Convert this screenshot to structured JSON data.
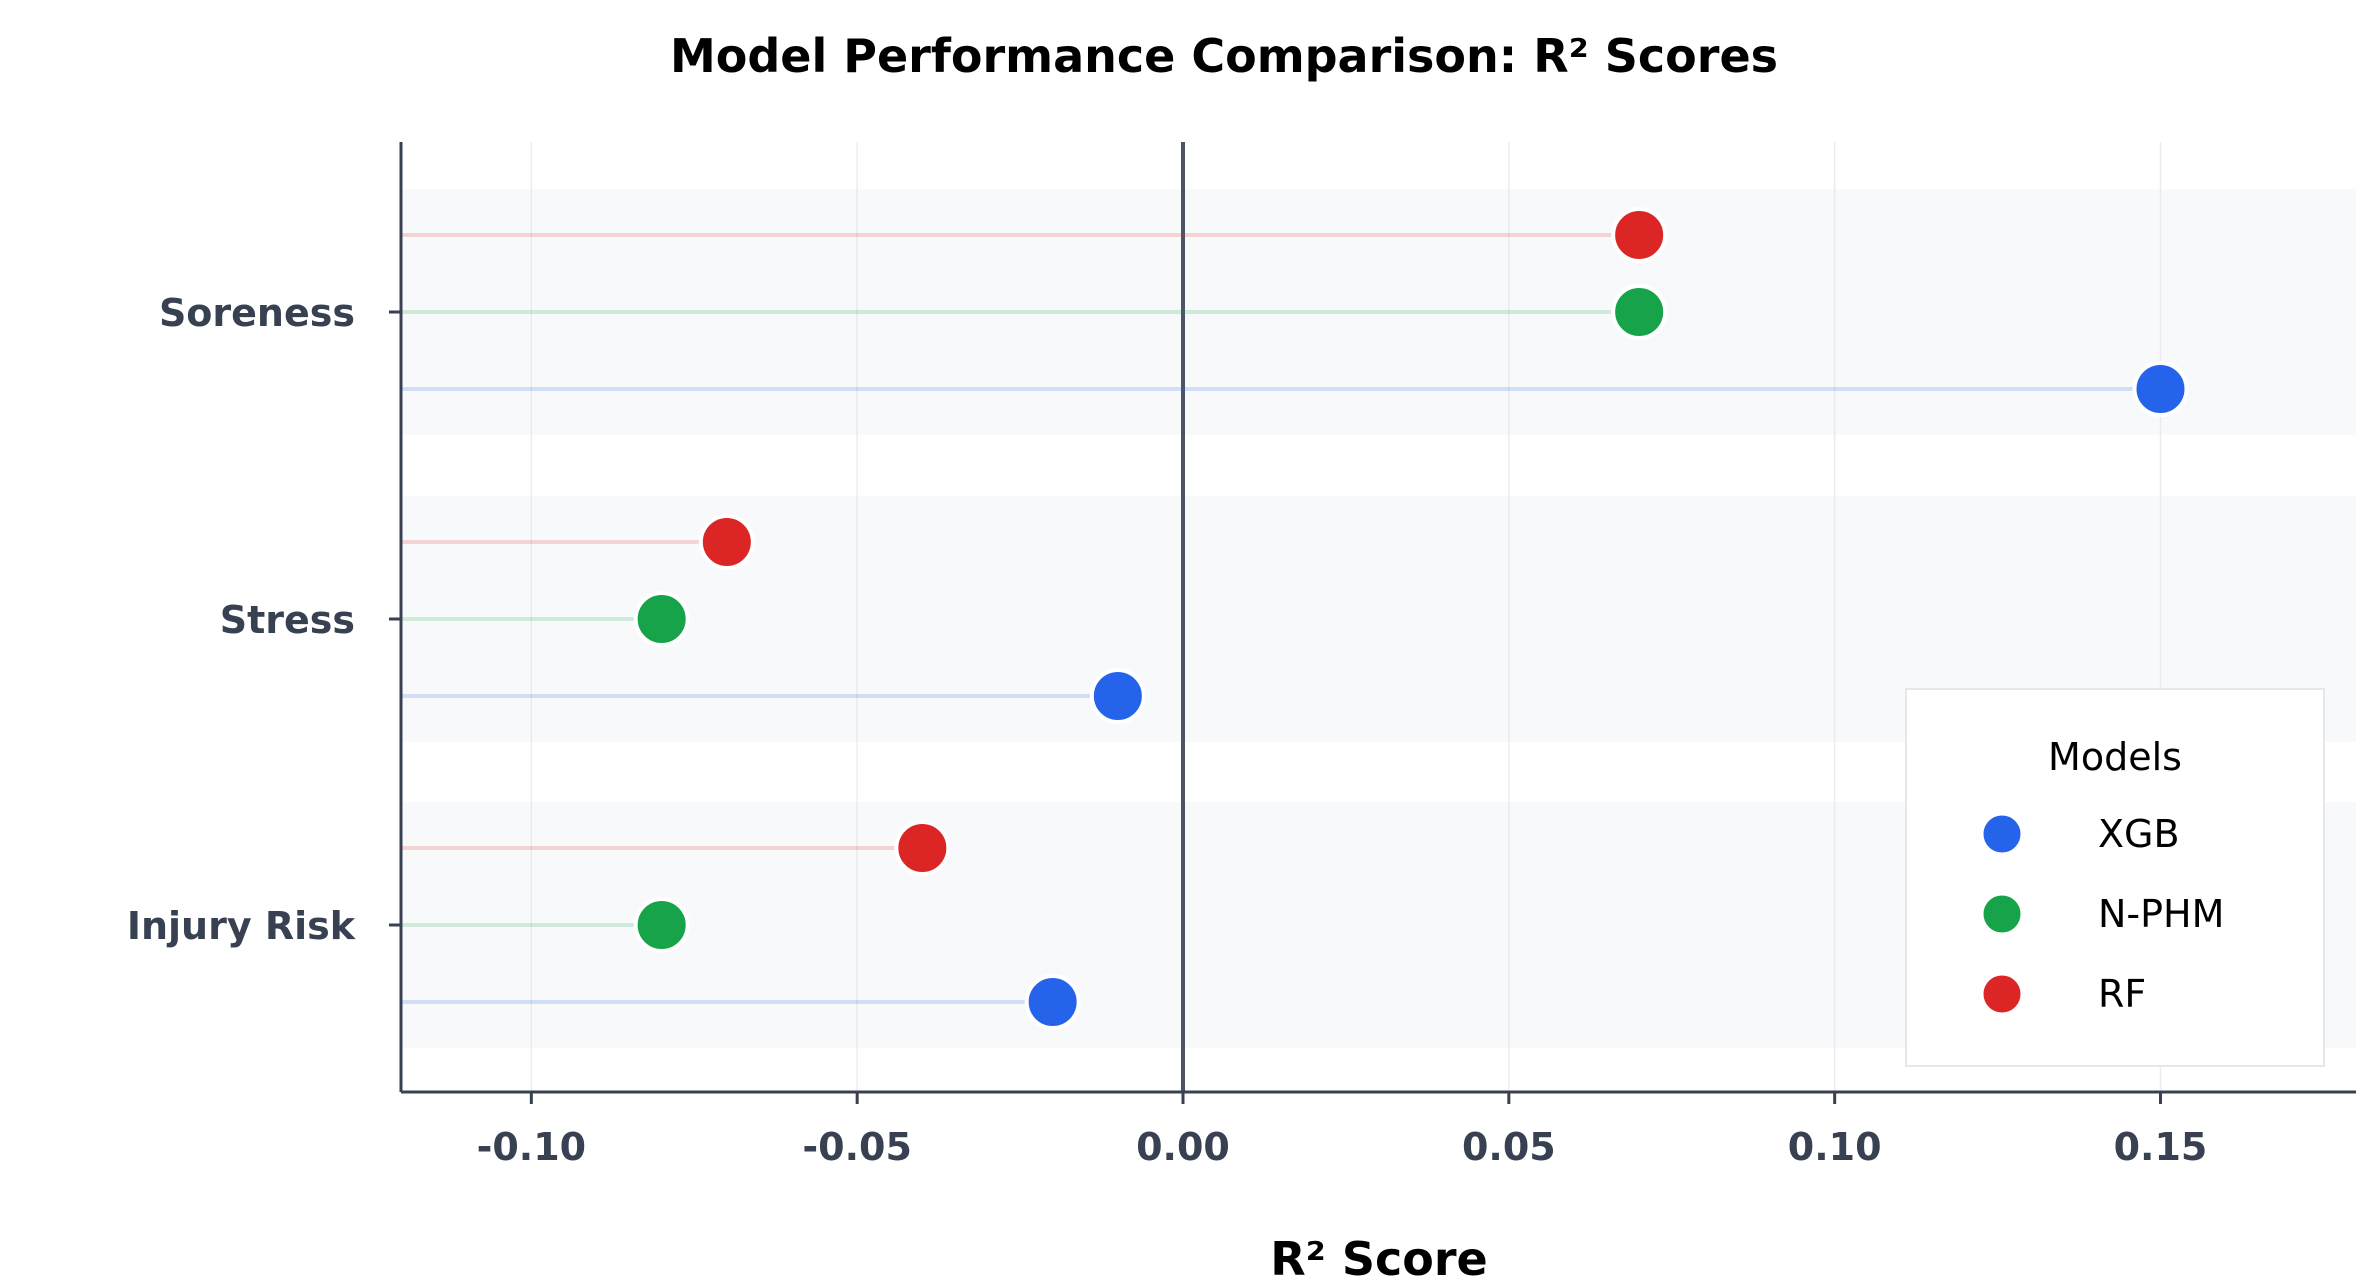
{
  "chart_data": {
    "type": "scatter",
    "subtype": "lollipop",
    "title": "Model Performance Comparison: R² Scores",
    "xlabel": "R² Score",
    "ylabel": "",
    "xlim": [
      -0.12,
      0.18
    ],
    "xticks": [
      -0.1,
      -0.05,
      0.0,
      0.05,
      0.1,
      0.15
    ],
    "xtick_labels": [
      "-0.10",
      "-0.05",
      "0.00",
      "0.05",
      "0.10",
      "0.15"
    ],
    "categories": [
      "Soreness",
      "Stress",
      "Injury Risk"
    ],
    "series": [
      {
        "name": "XGB",
        "color": "#2563eb",
        "values": [
          0.15,
          -0.01,
          -0.02
        ]
      },
      {
        "name": "N-PHM",
        "color": "#16a34a",
        "values": [
          0.07,
          -0.08,
          -0.08
        ]
      },
      {
        "name": "RF",
        "color": "#dc2626",
        "values": [
          0.07,
          -0.07,
          -0.04
        ]
      }
    ],
    "legend": {
      "title": "Models",
      "position": "lower-right"
    },
    "grid": true,
    "zero_line": true
  }
}
